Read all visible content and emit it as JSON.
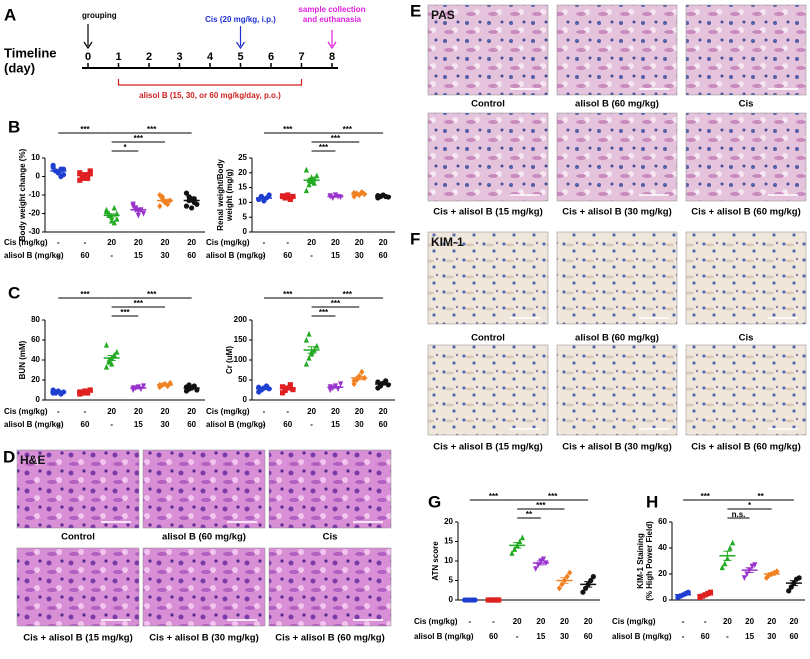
{
  "panel_a": {
    "letter": "A",
    "title_lines": [
      "Timeline",
      "(day)"
    ],
    "days": [
      0,
      1,
      2,
      3,
      4,
      5,
      6,
      7,
      8
    ],
    "grouping": "grouping",
    "cis_note": "Cis (20 mg/kg, i.p.)",
    "end_note": [
      "sample collection",
      "and euthanasia"
    ],
    "treatment": "alisol B (15, 30, or 60 mg/kg/day, p.o.)"
  },
  "chart_data": [
    {
      "type": "dot",
      "panel_label": "B",
      "ylabel": [
        "Body weight change (%)"
      ],
      "ylim": [
        -30,
        10
      ],
      "yticks": [
        -30,
        -20,
        -10,
        0,
        10
      ],
      "row_labels": [
        "Cis (mg/kg)",
        "alisol B (mg/kg)"
      ],
      "cis": [
        "-",
        "-",
        "20",
        "20",
        "20",
        "20"
      ],
      "alisol": [
        "-",
        "60",
        "-",
        "15",
        "30",
        "60"
      ],
      "brackets": [
        "***",
        "***",
        "***",
        "*"
      ],
      "groups": [
        {
          "color": "#1f3fd0",
          "marker": "circle",
          "points": [
            5,
            3,
            2,
            4,
            1,
            6,
            3,
            2,
            0,
            4
          ],
          "mean": 3,
          "sem": 0.6
        },
        {
          "color": "#e02020",
          "marker": "square",
          "points": [
            2,
            0,
            -1,
            1,
            3,
            -2,
            0,
            1,
            -1,
            2
          ],
          "mean": 0.5,
          "sem": 0.5
        },
        {
          "color": "#22aa22",
          "marker": "triangle",
          "points": [
            -18,
            -20,
            -22,
            -25,
            -23,
            -19,
            -21,
            -24,
            -17,
            -20
          ],
          "mean": -21,
          "sem": 0.8
        },
        {
          "color": "#9933cc",
          "marker": "triangle-down",
          "points": [
            -15,
            -17,
            -19,
            -18,
            -20,
            -16,
            -18,
            -21
          ],
          "mean": -18,
          "sem": 0.7
        },
        {
          "color": "#f08020",
          "marker": "diamond",
          "points": [
            -10,
            -12,
            -14,
            -15,
            -13,
            -16,
            -11,
            -14
          ],
          "mean": -13,
          "sem": 0.7
        },
        {
          "color": "#111111",
          "marker": "circle",
          "points": [
            -9,
            -11,
            -12,
            -14,
            -15,
            -16,
            -13,
            -17,
            -12
          ],
          "mean": -13,
          "sem": 0.8
        }
      ]
    },
    {
      "type": "dot",
      "ylabel": [
        "Renal weight/Body",
        "weight (mg/g)"
      ],
      "ylim": [
        0,
        25
      ],
      "yticks": [
        0,
        5,
        10,
        15,
        20,
        25
      ],
      "row_labels": [
        "Cis (mg/kg)",
        "alisol B (mg/kg)"
      ],
      "cis": [
        "-",
        "-",
        "20",
        "20",
        "20",
        "20"
      ],
      "alisol": [
        "-",
        "60",
        "-",
        "15",
        "30",
        "60"
      ],
      "brackets": [
        "***",
        "***",
        "***",
        "***"
      ],
      "groups": [
        {
          "color": "#1f3fd0",
          "marker": "circle",
          "points": [
            11,
            12,
            10.5,
            11.5,
            12.5,
            11,
            12
          ],
          "mean": 11.5,
          "sem": 0.3
        },
        {
          "color": "#e02020",
          "marker": "square",
          "points": [
            12,
            11.5,
            12.5,
            11,
            12,
            12.2,
            11.8
          ],
          "mean": 11.8,
          "sem": 0.2
        },
        {
          "color": "#22aa22",
          "marker": "triangle",
          "points": [
            14,
            16,
            17,
            18,
            19,
            21,
            17.5,
            18.5,
            16.5
          ],
          "mean": 17.5,
          "sem": 0.6
        },
        {
          "color": "#9933cc",
          "marker": "triangle-down",
          "points": [
            12,
            11.5,
            12.5,
            12,
            11.8,
            12.2
          ],
          "mean": 12,
          "sem": 0.2
        },
        {
          "color": "#f08020",
          "marker": "diamond",
          "points": [
            12,
            13,
            12.5,
            13.5,
            12.8,
            13.2
          ],
          "mean": 12.8,
          "sem": 0.2
        },
        {
          "color": "#111111",
          "marker": "circle",
          "points": [
            11.5,
            12,
            12.5,
            12,
            11.8,
            12.3
          ],
          "mean": 12,
          "sem": 0.2
        }
      ]
    },
    {
      "type": "dot",
      "panel_label": "C",
      "ylabel": [
        "BUN (mM)"
      ],
      "ylim": [
        0,
        80
      ],
      "yticks": [
        0,
        20,
        40,
        60,
        80
      ],
      "row_labels": [
        "Cis (mg/kg)",
        "alisol B (mg/kg)"
      ],
      "cis": [
        "-",
        "-",
        "20",
        "20",
        "20",
        "20"
      ],
      "alisol": [
        "-",
        "60",
        "-",
        "15",
        "30",
        "60"
      ],
      "brackets": [
        "***",
        "***",
        "***",
        "***"
      ],
      "groups": [
        {
          "color": "#1f3fd0",
          "marker": "circle",
          "points": [
            7,
            8,
            9,
            6,
            8,
            10,
            7
          ],
          "mean": 8,
          "sem": 0.5
        },
        {
          "color": "#e02020",
          "marker": "square",
          "points": [
            6,
            8,
            9,
            7,
            10,
            8,
            7
          ],
          "mean": 8,
          "sem": 0.5
        },
        {
          "color": "#22aa22",
          "marker": "triangle",
          "points": [
            33,
            38,
            42,
            45,
            48,
            55,
            40,
            36
          ],
          "mean": 42,
          "sem": 2.5
        },
        {
          "color": "#9933cc",
          "marker": "triangle-down",
          "points": [
            10,
            12,
            13,
            11,
            14,
            12
          ],
          "mean": 12,
          "sem": 0.6
        },
        {
          "color": "#f08020",
          "marker": "diamond",
          "points": [
            13,
            15,
            16,
            14,
            17,
            15
          ],
          "mean": 15,
          "sem": 0.6
        },
        {
          "color": "#111111",
          "marker": "circle",
          "points": [
            9,
            11,
            12,
            14,
            10,
            13,
            15
          ],
          "mean": 12,
          "sem": 0.8
        }
      ]
    },
    {
      "type": "dot",
      "ylabel": [
        "Cr (uM)"
      ],
      "ylim": [
        0,
        200
      ],
      "yticks": [
        0,
        50,
        100,
        150,
        200
      ],
      "row_labels": [
        "Cis (mg/kg)",
        "alisol B (mg/kg)"
      ],
      "cis": [
        "-",
        "-",
        "20",
        "20",
        "20",
        "20"
      ],
      "alisol": [
        "-",
        "60",
        "-",
        "15",
        "30",
        "60"
      ],
      "brackets": [
        "***",
        "***",
        "***",
        "***"
      ],
      "groups": [
        {
          "color": "#1f3fd0",
          "marker": "circle",
          "points": [
            20,
            25,
            30,
            35,
            28,
            32,
            26
          ],
          "mean": 28,
          "sem": 2
        },
        {
          "color": "#e02020",
          "marker": "square",
          "points": [
            18,
            24,
            30,
            38,
            26,
            33,
            27
          ],
          "mean": 28,
          "sem": 2.5
        },
        {
          "color": "#22aa22",
          "marker": "triangle",
          "points": [
            90,
            105,
            115,
            125,
            135,
            150,
            165,
            120
          ],
          "mean": 125,
          "sem": 8
        },
        {
          "color": "#9933cc",
          "marker": "triangle-down",
          "points": [
            25,
            30,
            35,
            28,
            40,
            33
          ],
          "mean": 32,
          "sem": 2
        },
        {
          "color": "#f08020",
          "marker": "diamond",
          "points": [
            40,
            50,
            60,
            70,
            55,
            48
          ],
          "mean": 55,
          "sem": 4
        },
        {
          "color": "#111111",
          "marker": "circle",
          "points": [
            30,
            35,
            42,
            48,
            38,
            45,
            40
          ],
          "mean": 40,
          "sem": 2.5
        }
      ]
    },
    {
      "type": "dot",
      "panel_label": "G",
      "ylabel": [
        "ATN score"
      ],
      "ylim": [
        0,
        20
      ],
      "yticks": [
        0,
        5,
        10,
        15,
        20
      ],
      "row_labels": [
        "Cis (mg/kg)",
        "alisol B (mg/kg)"
      ],
      "cis": [
        "-",
        "-",
        "20",
        "20",
        "20",
        "20"
      ],
      "alisol": [
        "-",
        "60",
        "-",
        "15",
        "30",
        "60"
      ],
      "brackets": [
        "***",
        "***",
        "***",
        "**"
      ],
      "groups": [
        {
          "color": "#1f3fd0",
          "marker": "circle",
          "points": [
            0,
            0,
            0,
            0,
            0
          ],
          "mean": 0,
          "sem": 0
        },
        {
          "color": "#e02020",
          "marker": "square",
          "points": [
            0,
            0,
            0,
            0,
            0
          ],
          "mean": 0,
          "sem": 0
        },
        {
          "color": "#22aa22",
          "marker": "triangle",
          "points": [
            12,
            13,
            14,
            15,
            16
          ],
          "mean": 14,
          "sem": 0.7
        },
        {
          "color": "#9933cc",
          "marker": "triangle-down",
          "points": [
            8,
            9,
            10,
            10.5,
            9.5
          ],
          "mean": 9.5,
          "sem": 0.5
        },
        {
          "color": "#f08020",
          "marker": "diamond",
          "points": [
            3,
            4,
            5,
            6,
            7
          ],
          "mean": 5,
          "sem": 0.7
        },
        {
          "color": "#111111",
          "marker": "circle",
          "points": [
            2,
            3,
            4,
            5,
            6
          ],
          "mean": 4,
          "sem": 0.7
        }
      ]
    },
    {
      "type": "dot",
      "panel_label": "H",
      "ylabel": [
        "KIM-1 Staining",
        "(% High Power Field)"
      ],
      "ylim": [
        0,
        60
      ],
      "yticks": [
        0,
        20,
        40,
        60
      ],
      "row_labels": [
        "Cis (mg/kg)",
        "alisol B (mg/kg)"
      ],
      "cis": [
        "-",
        "-",
        "20",
        "20",
        "20",
        "20"
      ],
      "alisol": [
        "-",
        "60",
        "-",
        "15",
        "30",
        "60"
      ],
      "brackets": [
        "***",
        "**",
        "*",
        "n.s."
      ],
      "groups": [
        {
          "color": "#1f3fd0",
          "marker": "circle",
          "points": [
            2,
            3,
            4,
            5,
            6
          ],
          "mean": 4,
          "sem": 0.7
        },
        {
          "color": "#e02020",
          "marker": "square",
          "points": [
            2,
            3,
            4,
            5,
            6
          ],
          "mean": 4,
          "sem": 0.7
        },
        {
          "color": "#22aa22",
          "marker": "triangle",
          "points": [
            25,
            28,
            32,
            40,
            44
          ],
          "mean": 34,
          "sem": 3.5
        },
        {
          "color": "#9933cc",
          "marker": "triangle-down",
          "points": [
            17,
            20,
            23,
            26,
            27
          ],
          "mean": 23,
          "sem": 1.8
        },
        {
          "color": "#f08020",
          "marker": "diamond",
          "points": [
            17,
            19,
            20,
            21,
            22
          ],
          "mean": 20,
          "sem": 1
        },
        {
          "color": "#111111",
          "marker": "circle",
          "points": [
            7,
            10,
            13,
            16,
            17
          ],
          "mean": 13,
          "sem": 1.9
        }
      ]
    }
  ],
  "image_panels": [
    {
      "letter": "D",
      "stain": "H&E",
      "captions": [
        "Control",
        "alisol B (60 mg/kg)",
        "Cis",
        "Cis + alisol B (15 mg/kg)",
        "Cis + alisol B (30 mg/kg)",
        "Cis + alisol B (60 mg/kg)"
      ]
    },
    {
      "letter": "E",
      "stain": "PAS",
      "captions": [
        "Control",
        "alisol B (60 mg/kg)",
        "Cis",
        "Cis + alisol B (15 mg/kg)",
        "Cis + alisol B (30 mg/kg)",
        "Cis + alisol B (60 mg/kg)"
      ]
    },
    {
      "letter": "F",
      "stain": "KIM-1",
      "captions": [
        "Control",
        "alisol B (60 mg/kg)",
        "Cis",
        "Cis + alisol B (15 mg/kg)",
        "Cis + alisol B (30 mg/kg)",
        "Cis + alisol B (60 mg/kg)"
      ]
    }
  ]
}
